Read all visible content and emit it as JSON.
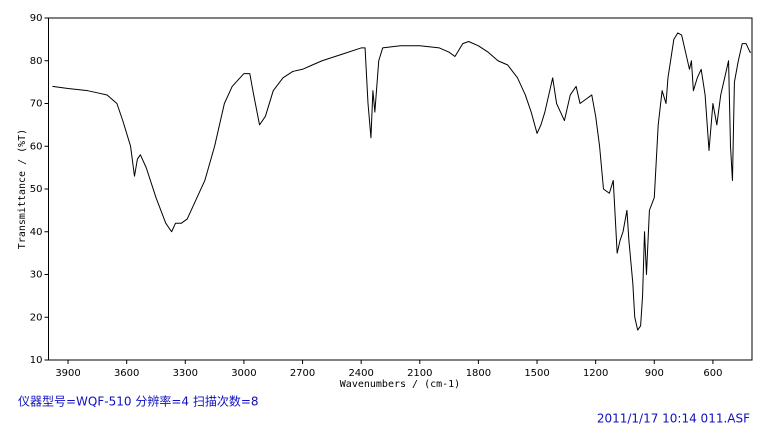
{
  "chart_data": {
    "type": "line",
    "x_label": "Wavenumbers / (cm-1)",
    "y_label": "Transmittance / (%T)",
    "footer_left": "仪器型号=WQF-510 分辨率=4 扫描次数=8",
    "footer_right": "2011/1/17 10:14 011.ASF",
    "xlim": [
      4000,
      400
    ],
    "ylim": [
      10,
      90
    ],
    "xticks": [
      3900,
      3600,
      3300,
      3000,
      2700,
      2400,
      2100,
      1800,
      1500,
      1200,
      900,
      600
    ],
    "yticks": [
      10,
      20,
      30,
      40,
      50,
      60,
      70,
      80,
      90
    ],
    "series": [
      {
        "color": "#000000",
        "x": [
          3980,
          3900,
          3800,
          3750,
          3700,
          3650,
          3620,
          3580,
          3560,
          3545,
          3530,
          3500,
          3450,
          3400,
          3370,
          3350,
          3320,
          3290,
          3250,
          3200,
          3150,
          3100,
          3060,
          3000,
          2970,
          2950,
          2920,
          2890,
          2850,
          2800,
          2750,
          2700,
          2650,
          2600,
          2500,
          2400,
          2380,
          2365,
          2350,
          2340,
          2330,
          2310,
          2290,
          2200,
          2100,
          2000,
          1950,
          1920,
          1880,
          1850,
          1800,
          1750,
          1700,
          1650,
          1600,
          1560,
          1530,
          1500,
          1480,
          1460,
          1420,
          1400,
          1380,
          1360,
          1330,
          1300,
          1280,
          1250,
          1220,
          1200,
          1180,
          1160,
          1130,
          1110,
          1090,
          1075,
          1060,
          1040,
          1030,
          1010,
          1000,
          985,
          970,
          960,
          950,
          940,
          925,
          900,
          880,
          860,
          840,
          830,
          800,
          780,
          760,
          740,
          720,
          710,
          700,
          680,
          660,
          640,
          620,
          600,
          580,
          560,
          540,
          520,
          510,
          500,
          490,
          470,
          450,
          430,
          410,
          405
        ],
        "values": [
          74,
          73.5,
          73,
          72.5,
          72,
          70,
          66,
          60,
          53,
          57,
          58,
          55,
          48,
          42,
          40,
          42,
          42,
          43,
          47,
          52,
          60,
          70,
          74,
          77,
          77,
          72,
          65,
          67,
          73,
          76,
          77.5,
          78,
          79,
          80,
          81.5,
          83,
          83,
          70,
          62,
          73,
          68,
          80,
          83,
          83.5,
          83.5,
          83,
          82,
          81,
          84,
          84.5,
          83.5,
          82,
          80,
          79,
          76,
          72,
          68,
          63,
          65,
          68,
          76,
          70,
          68,
          66,
          72,
          74,
          70,
          71,
          72,
          67,
          60,
          50,
          49,
          52,
          35,
          38,
          40,
          45,
          38,
          28,
          20,
          17,
          18,
          25,
          40,
          30,
          45,
          48,
          65,
          73,
          70,
          76,
          85,
          86.5,
          86,
          82,
          78,
          80,
          73,
          76,
          78,
          72,
          59,
          70,
          65,
          72,
          76,
          80,
          60,
          52,
          75,
          80,
          84,
          84,
          82,
          82
        ]
      }
    ]
  }
}
